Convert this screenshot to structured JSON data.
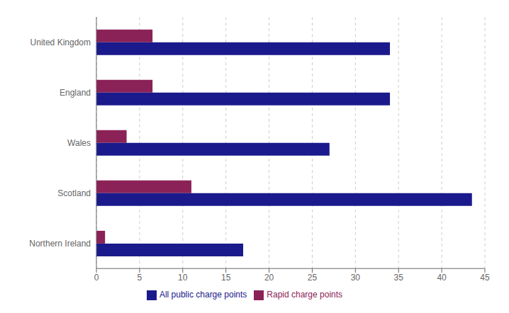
{
  "chart_data": {
    "type": "bar",
    "orientation": "horizontal",
    "categories": [
      "United Kingdom",
      "England",
      "Wales",
      "Scotland",
      "Northern Ireland"
    ],
    "series": [
      {
        "name": "Rapid charge points",
        "color": "#8B2257",
        "values": [
          6.5,
          6.5,
          3.5,
          11.0,
          1.0
        ]
      },
      {
        "name": "All public charge points",
        "color": "#1A1A8C",
        "values": [
          34.0,
          34.0,
          27.0,
          43.5,
          17.0
        ]
      }
    ],
    "xlim": [
      0,
      45
    ],
    "xticks": [
      0,
      5,
      10,
      15,
      20,
      25,
      30,
      35,
      40,
      45
    ],
    "grid": true,
    "legend": "bottom"
  }
}
